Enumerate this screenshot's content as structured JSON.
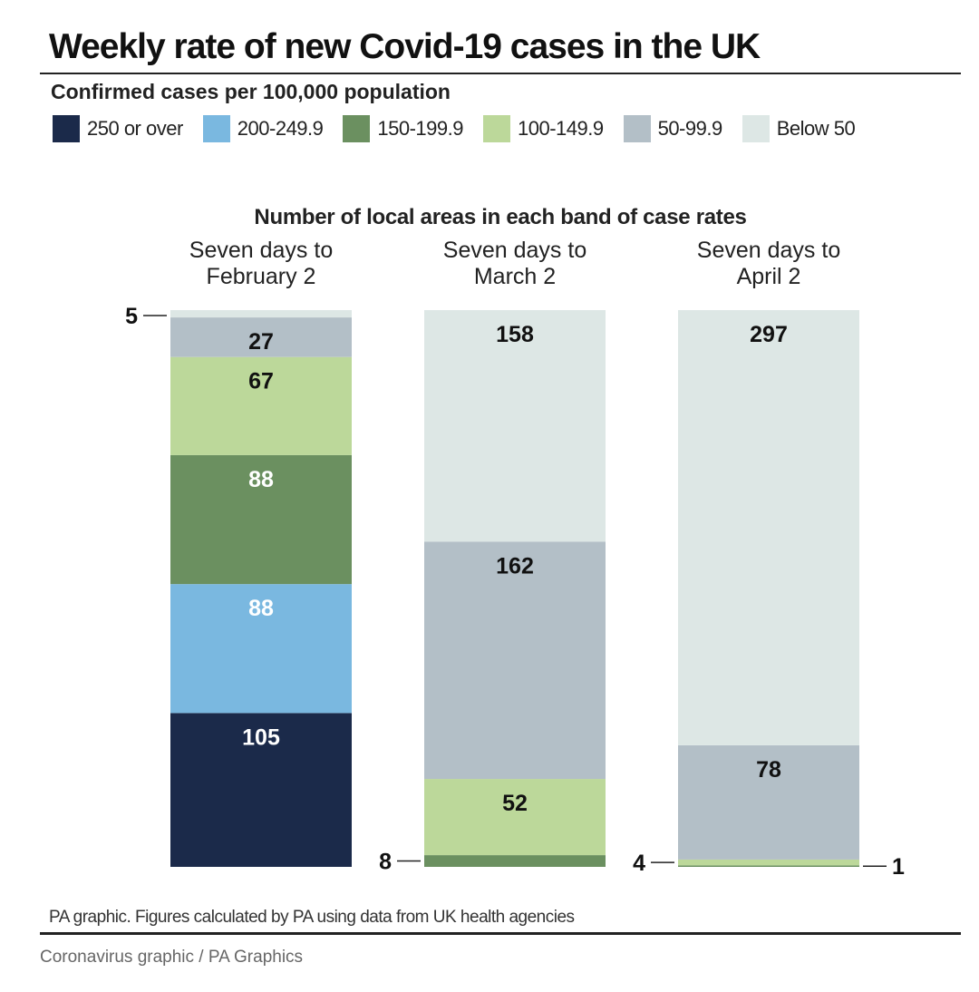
{
  "chart_data": {
    "type": "bar",
    "stacked": true,
    "title": "Weekly rate of new Covid-19 cases in the UK",
    "subtitle": "Confirmed cases per 100,000 population",
    "heading": "Number of local areas in each band of case rates",
    "categories": [
      "Seven days to February 2",
      "Seven days to March 2",
      "Seven days to April 2"
    ],
    "category_lines": [
      [
        "Seven days to",
        "February 2"
      ],
      [
        "Seven days to",
        "March 2"
      ],
      [
        "Seven days to",
        "April 2"
      ]
    ],
    "series": [
      {
        "name": "250 or over",
        "color": "#1b2a4a",
        "label_color": "#ffffff",
        "values": [
          105,
          0,
          0
        ]
      },
      {
        "name": "200-249.9",
        "color": "#7ab8e0",
        "label_color": "#ffffff",
        "values": [
          88,
          0,
          0
        ]
      },
      {
        "name": "150-199.9",
        "color": "#6b9060",
        "label_color": "#ffffff",
        "values": [
          88,
          8,
          1
        ]
      },
      {
        "name": "100-149.9",
        "color": "#bcd89a",
        "label_color": "#111111",
        "values": [
          67,
          52,
          4
        ]
      },
      {
        "name": "50-99.9",
        "color": "#b3bfc7",
        "label_color": "#111111",
        "values": [
          27,
          162,
          78
        ]
      },
      {
        "name": "Below 50",
        "color": "#dde7e5",
        "label_color": "#111111",
        "values": [
          5,
          158,
          297
        ]
      }
    ],
    "legend_position": "top",
    "grid": false
  },
  "footer": {
    "source": "PA graphic. Figures calculated by PA using data from UK health agencies",
    "caption": "Coronavirus graphic / PA Graphics"
  }
}
